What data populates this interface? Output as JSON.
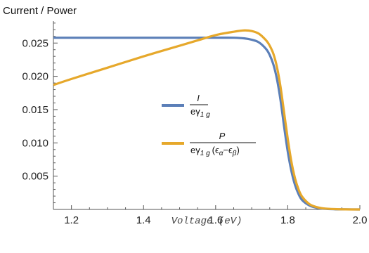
{
  "chart_data": {
    "type": "line",
    "title": "",
    "ylabel": "Current / Power",
    "xlabel": "Voltage (eV)",
    "xlim": [
      1.15,
      2.0
    ],
    "ylim": [
      0,
      0.0283
    ],
    "x_ticks": [
      "1.2",
      "1.4",
      "1.6",
      "1.8",
      "2.0"
    ],
    "y_ticks": [
      "0.005",
      "0.010",
      "0.015",
      "0.020",
      "0.025"
    ],
    "grid": false,
    "legend_position": "center",
    "series": [
      {
        "name": "I / eγ1g",
        "color": "#5b7fb8",
        "x": [
          1.15,
          1.2,
          1.3,
          1.4,
          1.5,
          1.55,
          1.6,
          1.65,
          1.68,
          1.7,
          1.72,
          1.74,
          1.75,
          1.76,
          1.77,
          1.78,
          1.79,
          1.8,
          1.81,
          1.82,
          1.83,
          1.84,
          1.86,
          1.88,
          1.9,
          1.93,
          1.96,
          2.0
        ],
        "y": [
          0.0258,
          0.0258,
          0.0258,
          0.0258,
          0.0258,
          0.0258,
          0.0258,
          0.0258,
          0.0257,
          0.0255,
          0.0251,
          0.0241,
          0.0232,
          0.0218,
          0.0196,
          0.0164,
          0.0124,
          0.0087,
          0.0058,
          0.0037,
          0.0023,
          0.0014,
          0.0006,
          0.00025,
          0.0001,
          3e-05,
          1e-05,
          0.0
        ]
      },
      {
        "name": "P / eγ1g (εα−εβ)",
        "color": "#e6a82b",
        "x": [
          1.15,
          1.2,
          1.3,
          1.4,
          1.5,
          1.55,
          1.6,
          1.65,
          1.68,
          1.7,
          1.72,
          1.74,
          1.75,
          1.76,
          1.77,
          1.78,
          1.79,
          1.8,
          1.81,
          1.82,
          1.83,
          1.84,
          1.86,
          1.88,
          1.9,
          1.93,
          1.96,
          2.0
        ],
        "y": [
          0.0187,
          0.0196,
          0.0213,
          0.023,
          0.0246,
          0.0254,
          0.0262,
          0.0267,
          0.0269,
          0.0268,
          0.0264,
          0.0254,
          0.0246,
          0.0234,
          0.0214,
          0.0184,
          0.0145,
          0.0106,
          0.0072,
          0.0047,
          0.003,
          0.0019,
          0.0008,
          0.00035,
          0.00015,
          5e-05,
          1e-05,
          0.0
        ]
      }
    ]
  },
  "legend": {
    "item1": {
      "num": "I",
      "den_main": "eγ",
      "den_sub": "1 g"
    },
    "item2": {
      "num": "P",
      "den_main": "eγ",
      "den_sub": "1 g",
      "den_paren": "(ϵ",
      "alpha": "α",
      "minus": "−ϵ",
      "beta": "β",
      "close": ")"
    }
  }
}
